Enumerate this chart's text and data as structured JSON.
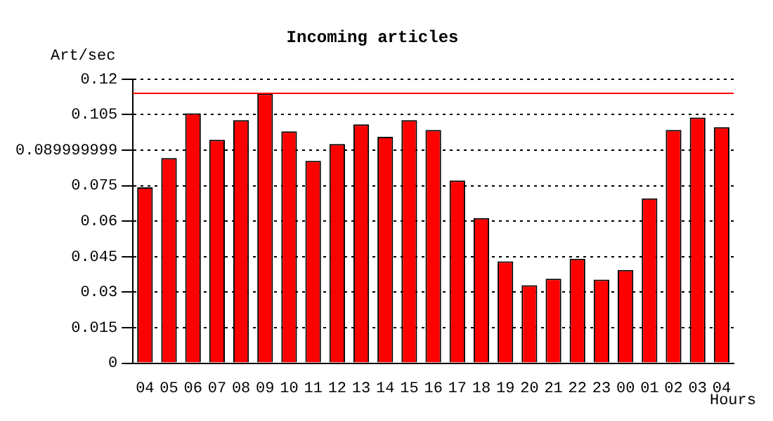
{
  "chart_data": {
    "type": "bar",
    "title": "Incoming articles",
    "ylabel": "Art/sec",
    "xlabel": "Hours",
    "categories": [
      "04",
      "05",
      "06",
      "07",
      "08",
      "09",
      "10",
      "11",
      "12",
      "13",
      "14",
      "15",
      "16",
      "17",
      "18",
      "19",
      "20",
      "21",
      "22",
      "23",
      "00",
      "01",
      "02",
      "03",
      "04"
    ],
    "series": [
      {
        "color": "#ff0000",
        "values": [
          0.0743,
          0.0867,
          0.1056,
          0.0944,
          0.1027,
          0.1139,
          0.0979,
          0.0855,
          0.0926,
          0.1009,
          0.0956,
          0.1027,
          0.0985,
          0.0772,
          0.0613,
          0.043,
          0.0329,
          0.0357,
          0.0441,
          0.0353,
          0.0394,
          0.0696,
          0.0985,
          0.1038,
          0.0997
        ]
      }
    ],
    "ylim": [
      0,
      0.12
    ],
    "yticks": [
      0,
      0.015,
      0.03,
      0.045,
      0.06,
      0.075,
      0.089999999,
      0.105,
      0.12
    ],
    "grid": "y",
    "legend": false,
    "ref_lines": [
      {
        "axis": "y",
        "value": 0.114,
        "color": "#ff0000"
      }
    ]
  }
}
